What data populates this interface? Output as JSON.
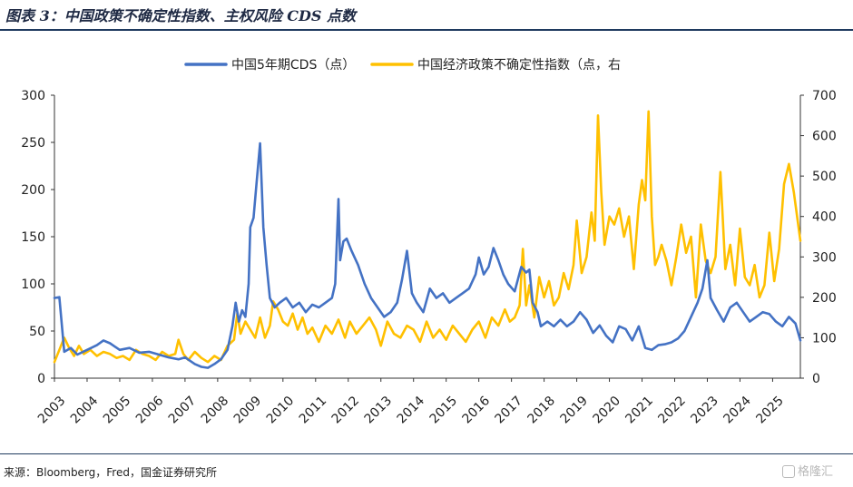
{
  "title": "图表 3：中国政策不确定性指数、主权风险 CDS 点数",
  "source": "来源：Bloomberg，Fred，国金证券研究所",
  "watermark": "格隆汇",
  "watermark_icon": "hexagon-logo-icon",
  "chart_data": {
    "type": "line",
    "legend_position": "top-center",
    "grid": false,
    "x_ticks": [
      "2003",
      "2004",
      "2005",
      "2006",
      "2007",
      "2008",
      "2009",
      "2010",
      "2011",
      "2012",
      "2013",
      "2014",
      "2015",
      "2016",
      "2017",
      "2018",
      "2019",
      "2020",
      "2021",
      "2022",
      "2023",
      "2024",
      "2025"
    ],
    "xlim": [
      2003.0,
      2025.85
    ],
    "y_left": {
      "lim": [
        0,
        300
      ],
      "ticks": [
        0,
        50,
        100,
        150,
        200,
        250,
        300
      ]
    },
    "y_right": {
      "lim": [
        0,
        700
      ],
      "ticks": [
        0,
        100,
        200,
        300,
        400,
        500,
        600,
        700
      ]
    },
    "series": [
      {
        "name": "中国5年期CDS（点）",
        "axis": "left",
        "color": "#4472C4",
        "points": [
          [
            2003.0,
            85
          ],
          [
            2003.15,
            86
          ],
          [
            2003.3,
            28
          ],
          [
            2003.5,
            32
          ],
          [
            2003.7,
            25
          ],
          [
            2004.0,
            30
          ],
          [
            2004.3,
            35
          ],
          [
            2004.5,
            40
          ],
          [
            2004.7,
            37
          ],
          [
            2005.0,
            30
          ],
          [
            2005.3,
            32
          ],
          [
            2005.6,
            27
          ],
          [
            2005.9,
            28
          ],
          [
            2006.2,
            25
          ],
          [
            2006.5,
            22
          ],
          [
            2006.8,
            20
          ],
          [
            2007.0,
            22
          ],
          [
            2007.3,
            15
          ],
          [
            2007.5,
            12
          ],
          [
            2007.7,
            11
          ],
          [
            2007.9,
            15
          ],
          [
            2008.1,
            20
          ],
          [
            2008.3,
            30
          ],
          [
            2008.45,
            55
          ],
          [
            2008.55,
            80
          ],
          [
            2008.65,
            60
          ],
          [
            2008.75,
            72
          ],
          [
            2008.85,
            65
          ],
          [
            2008.95,
            100
          ],
          [
            2009.0,
            160
          ],
          [
            2009.1,
            170
          ],
          [
            2009.2,
            210
          ],
          [
            2009.3,
            249
          ],
          [
            2009.4,
            160
          ],
          [
            2009.5,
            120
          ],
          [
            2009.6,
            85
          ],
          [
            2009.75,
            75
          ],
          [
            2009.9,
            80
          ],
          [
            2010.1,
            85
          ],
          [
            2010.3,
            75
          ],
          [
            2010.5,
            80
          ],
          [
            2010.7,
            70
          ],
          [
            2010.9,
            78
          ],
          [
            2011.1,
            75
          ],
          [
            2011.3,
            80
          ],
          [
            2011.5,
            85
          ],
          [
            2011.6,
            100
          ],
          [
            2011.7,
            190
          ],
          [
            2011.75,
            125
          ],
          [
            2011.85,
            145
          ],
          [
            2011.95,
            148
          ],
          [
            2012.1,
            135
          ],
          [
            2012.3,
            120
          ],
          [
            2012.5,
            100
          ],
          [
            2012.7,
            85
          ],
          [
            2012.9,
            75
          ],
          [
            2013.1,
            65
          ],
          [
            2013.3,
            70
          ],
          [
            2013.5,
            80
          ],
          [
            2013.65,
            105
          ],
          [
            2013.8,
            135
          ],
          [
            2013.95,
            90
          ],
          [
            2014.1,
            80
          ],
          [
            2014.3,
            70
          ],
          [
            2014.5,
            95
          ],
          [
            2014.7,
            85
          ],
          [
            2014.9,
            90
          ],
          [
            2015.1,
            80
          ],
          [
            2015.3,
            85
          ],
          [
            2015.5,
            90
          ],
          [
            2015.7,
            95
          ],
          [
            2015.9,
            110
          ],
          [
            2016.0,
            128
          ],
          [
            2016.15,
            110
          ],
          [
            2016.3,
            118
          ],
          [
            2016.45,
            138
          ],
          [
            2016.6,
            125
          ],
          [
            2016.75,
            110
          ],
          [
            2016.9,
            100
          ],
          [
            2017.1,
            92
          ],
          [
            2017.3,
            118
          ],
          [
            2017.45,
            112
          ],
          [
            2017.55,
            115
          ],
          [
            2017.65,
            80
          ],
          [
            2017.8,
            70
          ],
          [
            2017.9,
            55
          ],
          [
            2018.1,
            60
          ],
          [
            2018.3,
            55
          ],
          [
            2018.5,
            62
          ],
          [
            2018.7,
            55
          ],
          [
            2018.9,
            60
          ],
          [
            2019.1,
            70
          ],
          [
            2019.3,
            62
          ],
          [
            2019.5,
            48
          ],
          [
            2019.7,
            56
          ],
          [
            2019.9,
            45
          ],
          [
            2020.1,
            38
          ],
          [
            2020.3,
            55
          ],
          [
            2020.5,
            52
          ],
          [
            2020.7,
            40
          ],
          [
            2020.9,
            55
          ],
          [
            2021.1,
            32
          ],
          [
            2021.3,
            30
          ],
          [
            2021.5,
            35
          ],
          [
            2021.7,
            36
          ],
          [
            2021.9,
            38
          ],
          [
            2022.1,
            42
          ],
          [
            2022.3,
            50
          ],
          [
            2022.5,
            65
          ],
          [
            2022.7,
            80
          ],
          [
            2022.85,
            95
          ],
          [
            2023.0,
            125
          ],
          [
            2023.1,
            85
          ],
          [
            2023.3,
            72
          ],
          [
            2023.5,
            60
          ],
          [
            2023.7,
            75
          ],
          [
            2023.9,
            80
          ],
          [
            2024.1,
            70
          ],
          [
            2024.3,
            60
          ],
          [
            2024.5,
            65
          ],
          [
            2024.7,
            70
          ],
          [
            2024.9,
            68
          ],
          [
            2025.1,
            60
          ],
          [
            2025.3,
            55
          ],
          [
            2025.5,
            65
          ],
          [
            2025.7,
            58
          ],
          [
            2025.85,
            40
          ]
        ]
      },
      {
        "name": "中国经济政策不确定性指数（点，右",
        "axis": "right",
        "color": "#FFC000",
        "points": [
          [
            2003.0,
            40
          ],
          [
            2003.15,
            70
          ],
          [
            2003.3,
            100
          ],
          [
            2003.45,
            75
          ],
          [
            2003.6,
            55
          ],
          [
            2003.75,
            80
          ],
          [
            2003.9,
            60
          ],
          [
            2004.1,
            70
          ],
          [
            2004.3,
            55
          ],
          [
            2004.5,
            65
          ],
          [
            2004.7,
            60
          ],
          [
            2004.9,
            50
          ],
          [
            2005.1,
            55
          ],
          [
            2005.3,
            45
          ],
          [
            2005.5,
            70
          ],
          [
            2005.7,
            60
          ],
          [
            2005.9,
            55
          ],
          [
            2006.1,
            45
          ],
          [
            2006.3,
            65
          ],
          [
            2006.5,
            55
          ],
          [
            2006.7,
            60
          ],
          [
            2006.8,
            95
          ],
          [
            2006.95,
            60
          ],
          [
            2007.1,
            45
          ],
          [
            2007.3,
            65
          ],
          [
            2007.5,
            50
          ],
          [
            2007.7,
            40
          ],
          [
            2007.9,
            55
          ],
          [
            2008.1,
            45
          ],
          [
            2008.3,
            80
          ],
          [
            2008.5,
            95
          ],
          [
            2008.6,
            160
          ],
          [
            2008.7,
            110
          ],
          [
            2008.85,
            140
          ],
          [
            2009.0,
            120
          ],
          [
            2009.15,
            100
          ],
          [
            2009.3,
            150
          ],
          [
            2009.45,
            100
          ],
          [
            2009.6,
            130
          ],
          [
            2009.7,
            190
          ],
          [
            2009.85,
            170
          ],
          [
            2010.0,
            140
          ],
          [
            2010.15,
            130
          ],
          [
            2010.3,
            160
          ],
          [
            2010.45,
            120
          ],
          [
            2010.6,
            150
          ],
          [
            2010.75,
            110
          ],
          [
            2010.9,
            125
          ],
          [
            2011.1,
            90
          ],
          [
            2011.3,
            130
          ],
          [
            2011.5,
            110
          ],
          [
            2011.7,
            145
          ],
          [
            2011.9,
            100
          ],
          [
            2012.05,
            140
          ],
          [
            2012.25,
            110
          ],
          [
            2012.45,
            130
          ],
          [
            2012.65,
            150
          ],
          [
            2012.85,
            120
          ],
          [
            2013.0,
            80
          ],
          [
            2013.2,
            140
          ],
          [
            2013.4,
            110
          ],
          [
            2013.6,
            100
          ],
          [
            2013.8,
            130
          ],
          [
            2014.0,
            120
          ],
          [
            2014.2,
            90
          ],
          [
            2014.4,
            140
          ],
          [
            2014.6,
            100
          ],
          [
            2014.8,
            120
          ],
          [
            2015.0,
            95
          ],
          [
            2015.2,
            130
          ],
          [
            2015.4,
            110
          ],
          [
            2015.6,
            90
          ],
          [
            2015.8,
            120
          ],
          [
            2016.0,
            140
          ],
          [
            2016.2,
            100
          ],
          [
            2016.4,
            150
          ],
          [
            2016.6,
            130
          ],
          [
            2016.8,
            170
          ],
          [
            2016.95,
            140
          ],
          [
            2017.1,
            150
          ],
          [
            2017.25,
            180
          ],
          [
            2017.35,
            320
          ],
          [
            2017.45,
            180
          ],
          [
            2017.55,
            230
          ],
          [
            2017.7,
            150
          ],
          [
            2017.85,
            250
          ],
          [
            2018.0,
            200
          ],
          [
            2018.15,
            240
          ],
          [
            2018.3,
            180
          ],
          [
            2018.45,
            200
          ],
          [
            2018.6,
            260
          ],
          [
            2018.75,
            220
          ],
          [
            2018.9,
            280
          ],
          [
            2019.0,
            390
          ],
          [
            2019.15,
            260
          ],
          [
            2019.3,
            300
          ],
          [
            2019.45,
            410
          ],
          [
            2019.55,
            340
          ],
          [
            2019.65,
            650
          ],
          [
            2019.75,
            460
          ],
          [
            2019.85,
            330
          ],
          [
            2020.0,
            400
          ],
          [
            2020.15,
            380
          ],
          [
            2020.3,
            420
          ],
          [
            2020.45,
            350
          ],
          [
            2020.6,
            400
          ],
          [
            2020.75,
            270
          ],
          [
            2020.9,
            430
          ],
          [
            2021.0,
            490
          ],
          [
            2021.1,
            440
          ],
          [
            2021.2,
            660
          ],
          [
            2021.3,
            400
          ],
          [
            2021.4,
            280
          ],
          [
            2021.5,
            300
          ],
          [
            2021.6,
            330
          ],
          [
            2021.75,
            290
          ],
          [
            2021.9,
            230
          ],
          [
            2022.05,
            300
          ],
          [
            2022.2,
            380
          ],
          [
            2022.35,
            310
          ],
          [
            2022.5,
            350
          ],
          [
            2022.65,
            200
          ],
          [
            2022.8,
            380
          ],
          [
            2022.95,
            290
          ],
          [
            2023.1,
            260
          ],
          [
            2023.25,
            300
          ],
          [
            2023.4,
            510
          ],
          [
            2023.55,
            270
          ],
          [
            2023.7,
            330
          ],
          [
            2023.85,
            230
          ],
          [
            2024.0,
            370
          ],
          [
            2024.15,
            250
          ],
          [
            2024.3,
            230
          ],
          [
            2024.45,
            280
          ],
          [
            2024.6,
            200
          ],
          [
            2024.75,
            230
          ],
          [
            2024.9,
            360
          ],
          [
            2025.05,
            240
          ],
          [
            2025.2,
            320
          ],
          [
            2025.35,
            480
          ],
          [
            2025.5,
            530
          ],
          [
            2025.65,
            460
          ],
          [
            2025.85,
            340
          ]
        ]
      }
    ]
  }
}
